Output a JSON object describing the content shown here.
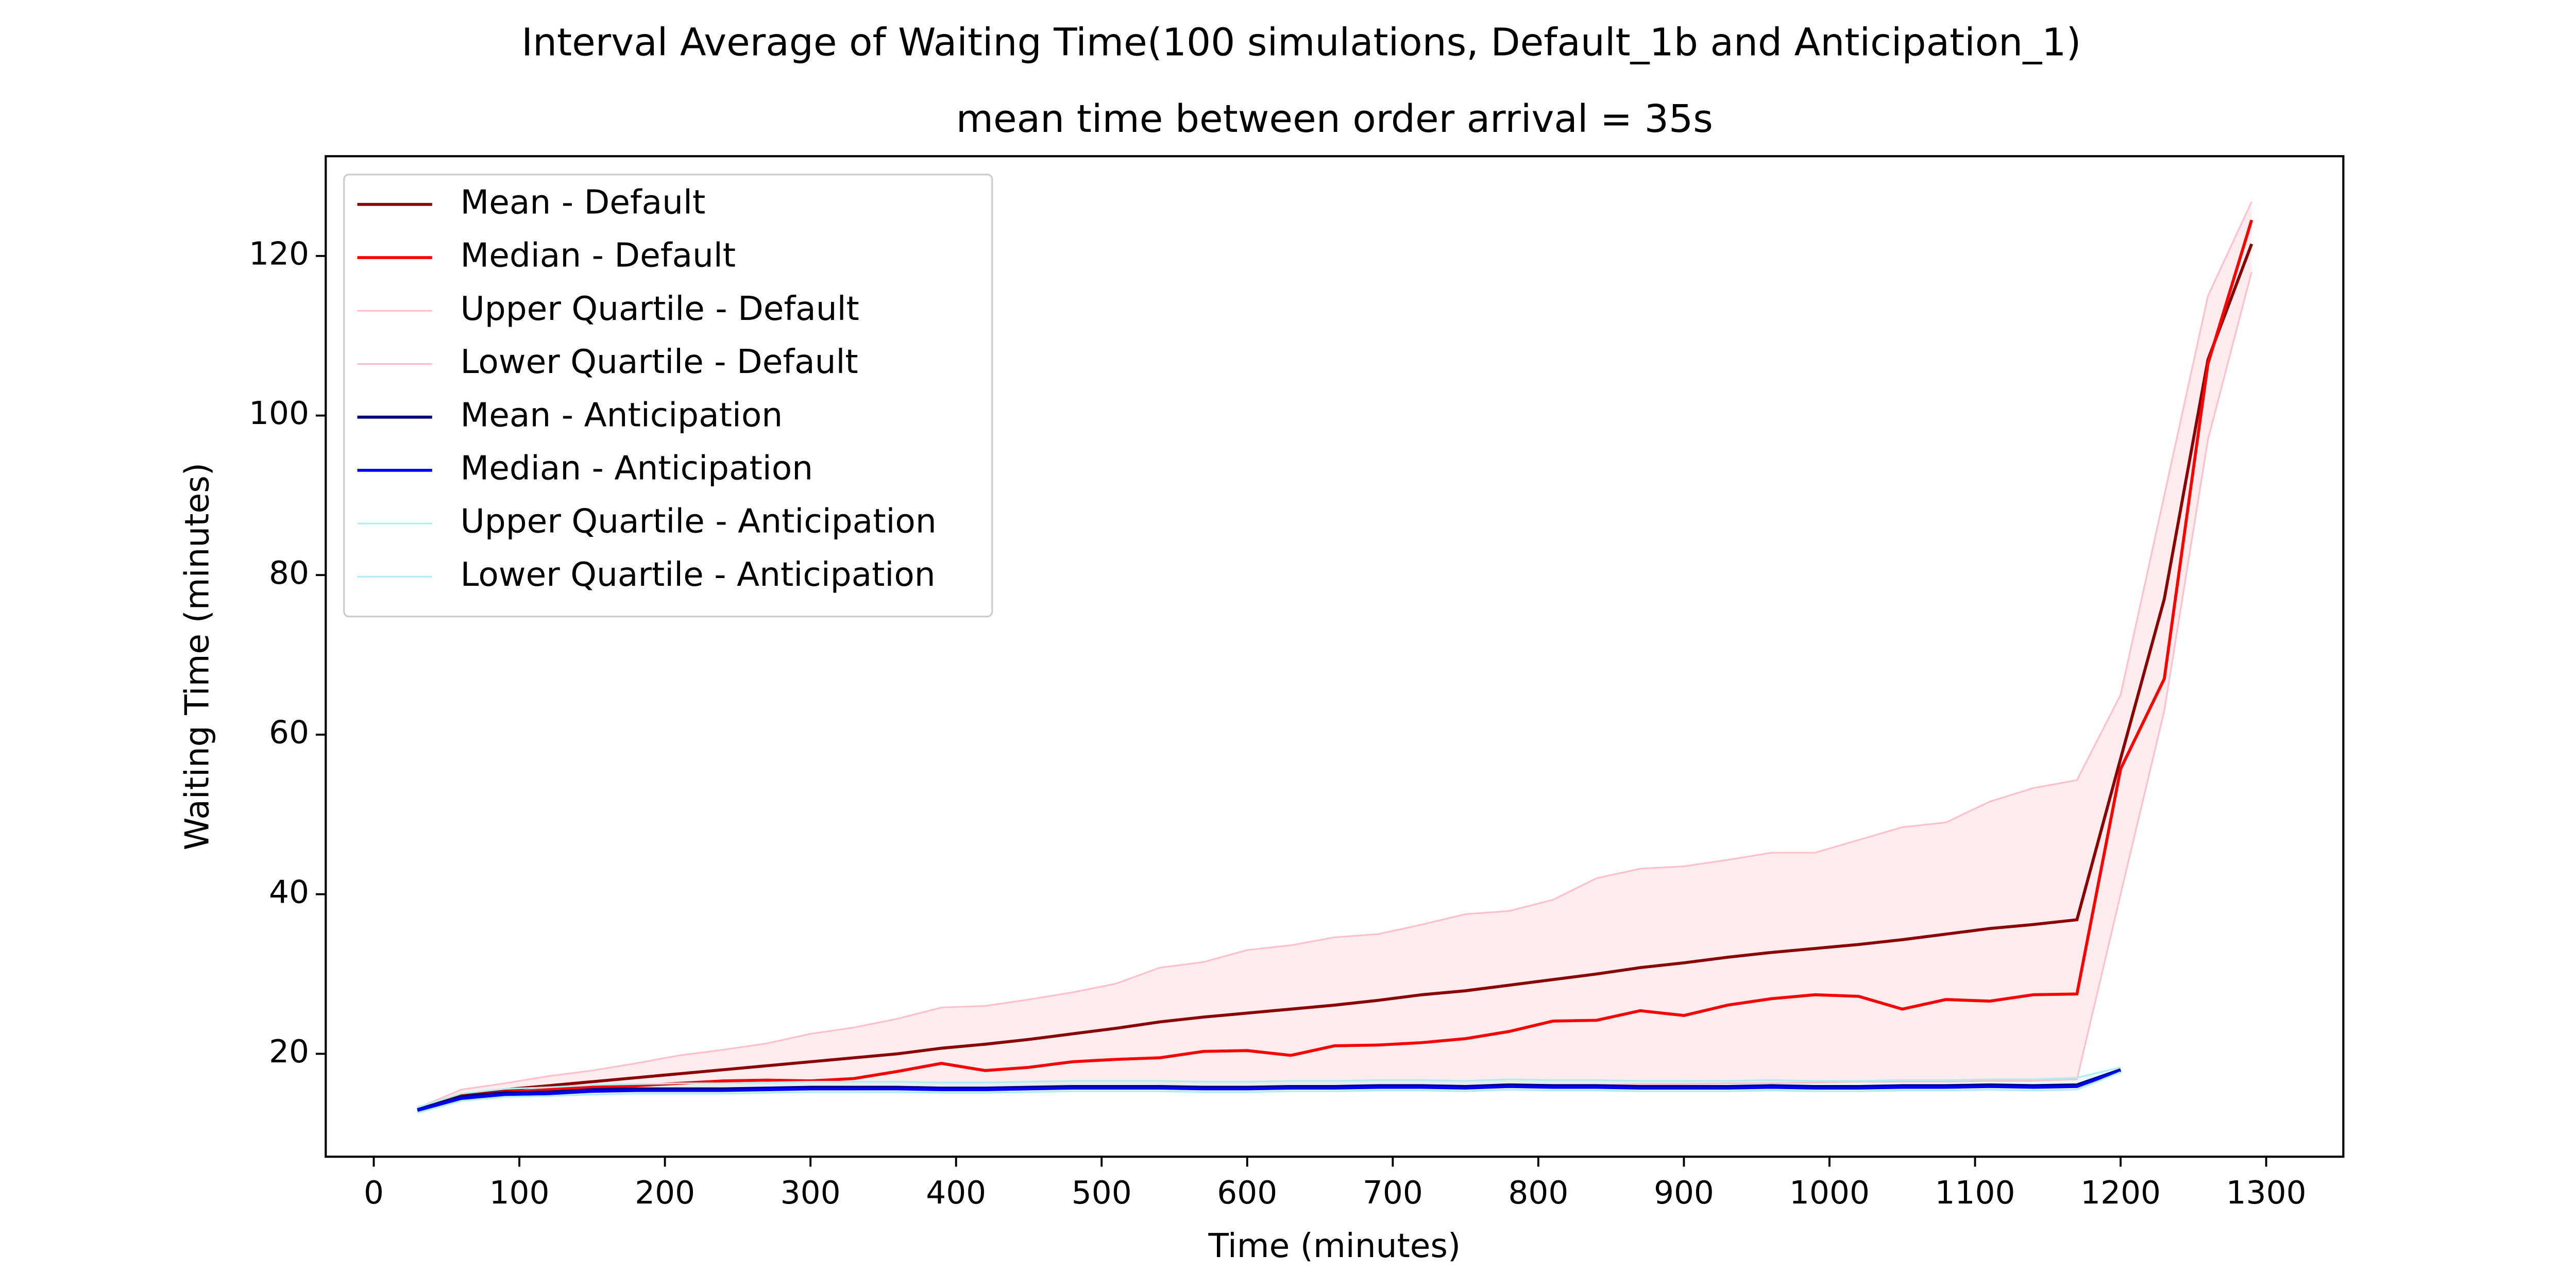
{
  "chart_data": {
    "type": "line",
    "title": "Interval Average of Waiting Time(100 simulations, Default_1b and Anticipation_1)",
    "subtitle": "mean time between order arrival = 35s",
    "xlabel": "Time (minutes)",
    "ylabel": "Waiting Time (minutes)",
    "xlim": [
      -33,
      1353
    ],
    "ylim": [
      7.1,
      132.5
    ],
    "xticks": [
      0,
      100,
      200,
      300,
      400,
      500,
      600,
      700,
      800,
      900,
      1000,
      1100,
      1200,
      1300
    ],
    "yticks": [
      20,
      40,
      60,
      80,
      100,
      120
    ],
    "legend": "upper left",
    "series": [
      {
        "name": "Mean - Default",
        "color": "#8b0000",
        "x": [
          30,
          60,
          90,
          120,
          150,
          180,
          210,
          240,
          270,
          300,
          330,
          360,
          390,
          420,
          450,
          480,
          510,
          540,
          570,
          600,
          630,
          660,
          690,
          720,
          750,
          780,
          810,
          840,
          870,
          900,
          930,
          960,
          990,
          1020,
          1050,
          1080,
          1110,
          1140,
          1170,
          1200,
          1230,
          1260,
          1290
        ],
        "values": [
          13,
          14.8,
          15.5,
          16,
          16.5,
          17,
          17.5,
          18,
          18.5,
          19,
          19.5,
          20,
          20.7,
          21.2,
          21.8,
          22.5,
          23.2,
          24,
          24.6,
          25.1,
          25.6,
          26.1,
          26.7,
          27.4,
          27.9,
          28.6,
          29.3,
          30,
          30.8,
          31.4,
          32.1,
          32.7,
          33.2,
          33.7,
          34.3,
          35,
          35.7,
          36.2,
          36.8,
          57,
          77,
          107,
          121.5
        ]
      },
      {
        "name": "Median - Default",
        "color": "#ff0000",
        "x": [
          30,
          60,
          90,
          120,
          150,
          180,
          210,
          240,
          270,
          300,
          330,
          360,
          390,
          420,
          450,
          480,
          510,
          540,
          570,
          600,
          630,
          660,
          690,
          720,
          750,
          780,
          810,
          840,
          870,
          900,
          930,
          960,
          990,
          1020,
          1050,
          1080,
          1110,
          1140,
          1170,
          1200,
          1230,
          1260,
          1290
        ],
        "values": [
          13,
          14.5,
          15.2,
          15.5,
          15.8,
          16,
          16.3,
          16.6,
          16.7,
          16.6,
          16.9,
          17.8,
          18.8,
          17.9,
          18.3,
          19,
          19.3,
          19.5,
          20.3,
          20.4,
          19.8,
          21,
          21.1,
          21.4,
          21.9,
          22.8,
          24.1,
          24.2,
          25.4,
          24.8,
          26.1,
          26.9,
          27.4,
          27.2,
          25.6,
          26.8,
          26.6,
          27.4,
          27.5,
          55.7,
          67,
          106.5,
          124.5
        ]
      },
      {
        "name": "Upper Quartile - Default",
        "color": "#ffc0cb",
        "x": [
          30,
          60,
          90,
          120,
          150,
          180,
          210,
          240,
          270,
          300,
          330,
          360,
          390,
          420,
          450,
          480,
          510,
          540,
          570,
          600,
          630,
          660,
          690,
          720,
          750,
          780,
          810,
          840,
          870,
          900,
          930,
          960,
          990,
          1020,
          1050,
          1080,
          1110,
          1140,
          1170,
          1200,
          1230,
          1260,
          1290
        ],
        "values": [
          13.2,
          15.5,
          16.3,
          17.2,
          17.9,
          18.8,
          19.8,
          20.5,
          21.3,
          22.5,
          23.3,
          24.4,
          25.8,
          26,
          26.8,
          27.7,
          28.8,
          30.8,
          31.5,
          33,
          33.6,
          34.6,
          35,
          36.2,
          37.5,
          37.9,
          39.3,
          42,
          43.2,
          43.5,
          44.3,
          45.2,
          45.2,
          46.8,
          48.4,
          49,
          51.6,
          53.3,
          54.3,
          65,
          90,
          115,
          126.8
        ]
      },
      {
        "name": "Lower Quartile - Default",
        "color": "#ffc0cb",
        "x": [
          30,
          60,
          90,
          120,
          150,
          180,
          210,
          240,
          270,
          300,
          330,
          360,
          390,
          420,
          450,
          480,
          510,
          540,
          570,
          600,
          630,
          660,
          690,
          720,
          750,
          780,
          810,
          840,
          870,
          900,
          930,
          960,
          990,
          1020,
          1050,
          1080,
          1110,
          1140,
          1170,
          1200,
          1230,
          1260,
          1290
        ],
        "values": [
          12.8,
          14.3,
          14.8,
          15,
          15.2,
          15.3,
          15.4,
          15.5,
          15.5,
          15.5,
          15.5,
          15.6,
          15.5,
          15.4,
          15.6,
          15.8,
          15.8,
          15.9,
          15.8,
          15.7,
          15.8,
          15.8,
          15.9,
          16,
          15.9,
          16,
          16.1,
          16.1,
          16.2,
          16.2,
          16.3,
          16.3,
          16.4,
          16.5,
          16.5,
          16.5,
          16.6,
          16.6,
          16.8,
          40,
          63,
          97,
          118
        ]
      },
      {
        "name": "Mean - Anticipation",
        "color": "#000080",
        "x": [
          30,
          60,
          90,
          120,
          150,
          180,
          210,
          240,
          270,
          300,
          330,
          360,
          390,
          420,
          450,
          480,
          510,
          540,
          570,
          600,
          630,
          660,
          690,
          720,
          750,
          780,
          810,
          840,
          870,
          900,
          930,
          960,
          990,
          1020,
          1050,
          1080,
          1110,
          1140,
          1170,
          1200
        ],
        "values": [
          13,
          14.6,
          15.1,
          15.2,
          15.5,
          15.6,
          15.6,
          15.6,
          15.7,
          15.8,
          15.8,
          15.8,
          15.7,
          15.7,
          15.8,
          15.9,
          15.9,
          15.9,
          15.8,
          15.8,
          15.9,
          15.9,
          16,
          16,
          15.9,
          16.1,
          16,
          16,
          15.9,
          15.9,
          15.9,
          16,
          15.9,
          15.9,
          16,
          16,
          16.1,
          16,
          16.1,
          18
        ]
      },
      {
        "name": "Median - Anticipation",
        "color": "#0000ff",
        "x": [
          30,
          60,
          90,
          120,
          150,
          180,
          210,
          240,
          270,
          300,
          330,
          360,
          390,
          420,
          450,
          480,
          510,
          540,
          570,
          600,
          630,
          660,
          690,
          720,
          750,
          780,
          810,
          840,
          870,
          900,
          930,
          960,
          990,
          1020,
          1050,
          1080,
          1110,
          1140,
          1170,
          1200
        ],
        "values": [
          12.9,
          14.4,
          14.9,
          15,
          15.3,
          15.4,
          15.4,
          15.4,
          15.5,
          15.6,
          15.6,
          15.6,
          15.5,
          15.5,
          15.6,
          15.7,
          15.7,
          15.7,
          15.6,
          15.6,
          15.7,
          15.7,
          15.8,
          15.8,
          15.7,
          15.9,
          15.8,
          15.8,
          15.7,
          15.7,
          15.7,
          15.8,
          15.7,
          15.7,
          15.8,
          15.8,
          15.9,
          15.8,
          15.9,
          17.9
        ]
      },
      {
        "name": "Upper Quartile - Anticipation",
        "color": "#afeeee",
        "x": [
          30,
          60,
          90,
          120,
          150,
          180,
          210,
          240,
          270,
          300,
          330,
          360,
          390,
          420,
          450,
          480,
          510,
          540,
          570,
          600,
          630,
          660,
          690,
          720,
          750,
          780,
          810,
          840,
          870,
          900,
          930,
          960,
          990,
          1020,
          1050,
          1080,
          1110,
          1140,
          1170,
          1200
        ],
        "values": [
          13.3,
          15,
          15.6,
          15.8,
          16.1,
          16.2,
          16.3,
          16.3,
          16.4,
          16.5,
          16.5,
          16.5,
          16.4,
          16.4,
          16.5,
          16.6,
          16.6,
          16.6,
          16.5,
          16.5,
          16.6,
          16.6,
          16.7,
          16.7,
          16.6,
          16.8,
          16.7,
          16.7,
          16.6,
          16.6,
          16.6,
          16.7,
          16.6,
          16.6,
          16.7,
          16.7,
          16.8,
          16.8,
          17,
          18.3
        ]
      },
      {
        "name": "Lower Quartile - Anticipation",
        "color": "#afeeee",
        "x": [
          30,
          60,
          90,
          120,
          150,
          180,
          210,
          240,
          270,
          300,
          330,
          360,
          390,
          420,
          450,
          480,
          510,
          540,
          570,
          600,
          630,
          660,
          690,
          720,
          750,
          780,
          810,
          840,
          870,
          900,
          930,
          960,
          990,
          1020,
          1050,
          1080,
          1110,
          1140,
          1170,
          1200
        ],
        "values": [
          12.6,
          14.1,
          14.6,
          14.7,
          14.9,
          15,
          15,
          15,
          15.1,
          15.2,
          15.2,
          15.2,
          15.1,
          15.1,
          15.2,
          15.3,
          15.3,
          15.3,
          15.2,
          15.2,
          15.3,
          15.3,
          15.4,
          15.4,
          15.3,
          15.5,
          15.4,
          15.4,
          15.3,
          15.3,
          15.3,
          15.4,
          15.3,
          15.3,
          15.4,
          15.4,
          15.5,
          15.4,
          15.5,
          17.7
        ]
      }
    ]
  }
}
